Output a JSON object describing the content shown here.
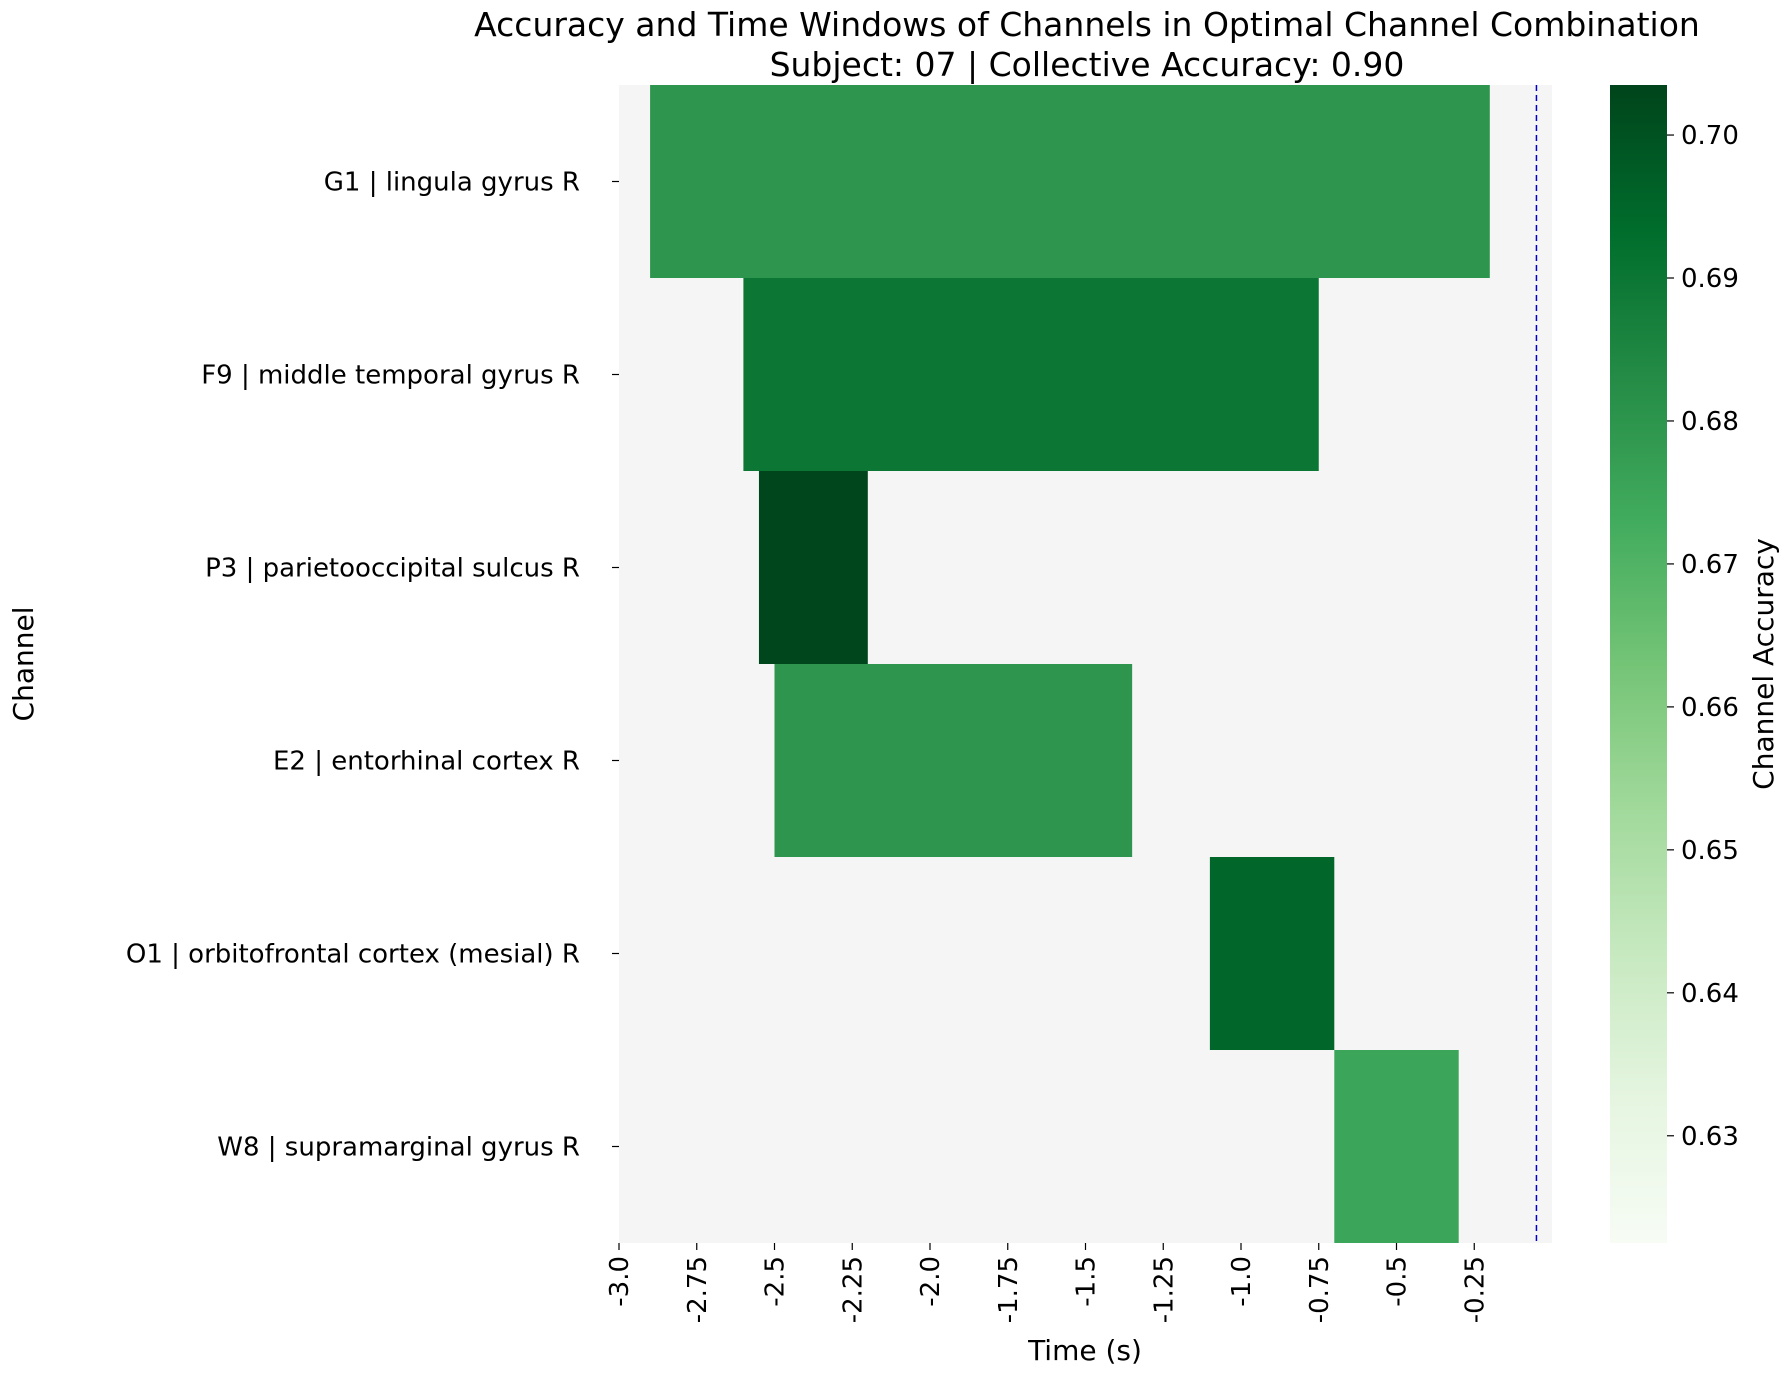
{
  "chart_data": {
    "type": "heatmap",
    "title": "Accuracy and Time Windows of Channels in Optimal Channel Combination",
    "subtitle": "Subject: 07 | Collective Accuracy: 0.90",
    "xlabel": "Time (s)",
    "ylabel": "Channel",
    "colorbar_label": "Channel Accuracy",
    "xlim": [
      -3.0,
      0
    ],
    "x_ticks": [
      -3.0,
      -2.75,
      -2.5,
      -2.25,
      -2.0,
      -1.75,
      -1.5,
      -1.25,
      -1.0,
      -0.75,
      -0.5,
      -0.25
    ],
    "x_tick_labels": [
      "-3.0",
      "-2.75",
      "-2.5",
      "-2.25",
      "-2.0",
      "-1.75",
      "-1.5",
      "-1.25",
      "-1.0",
      "-0.75",
      "-0.5",
      "-0.25"
    ],
    "reference_line_x": -0.05,
    "reference_line_color": "#0000cc",
    "background_color": "#f5f5f5",
    "colorbar_range": [
      0.6225,
      0.7035
    ],
    "colorbar_ticks": [
      0.63,
      0.64,
      0.65,
      0.66,
      0.67,
      0.68,
      0.69,
      0.7
    ],
    "colorbar_tick_labels": [
      "0.63",
      "0.64",
      "0.65",
      "0.66",
      "0.67",
      "0.68",
      "0.69",
      "0.70"
    ],
    "colormap": "Greens",
    "channels": [
      {
        "label": "G1 | lingula gyrus R",
        "start": -2.9,
        "end": -0.2,
        "accuracy": 0.68
      },
      {
        "label": "F9 | middle temporal gyrus R",
        "start": -2.6,
        "end": -0.75,
        "accuracy": 0.69
      },
      {
        "label": "P3 | parietooccipital sulcus R",
        "start": -2.55,
        "end": -2.2,
        "accuracy": 0.703
      },
      {
        "label": "E2 | entorhinal cortex R",
        "start": -2.5,
        "end": -1.35,
        "accuracy": 0.68
      },
      {
        "label": "O1 | orbitofrontal cortex (mesial) R",
        "start": -1.1,
        "end": -0.7,
        "accuracy": 0.695
      },
      {
        "label": "W8 | supramarginal gyrus R",
        "start": -0.7,
        "end": -0.3,
        "accuracy": 0.675
      }
    ]
  }
}
